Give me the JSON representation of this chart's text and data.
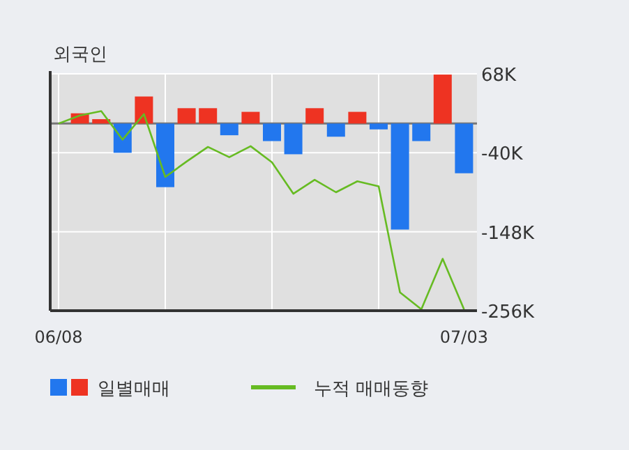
{
  "chart_data": {
    "type": "bar",
    "title": "외국인",
    "categories": [
      "06/08",
      null,
      null,
      null,
      null,
      null,
      null,
      null,
      null,
      null,
      null,
      null,
      null,
      null,
      null,
      null,
      null,
      null,
      null,
      "07/03"
    ],
    "series": [
      {
        "name": "일별매매",
        "colors": [
          null,
          "#ee3322",
          "#ee3322",
          "#2277ee",
          "#ee3322",
          "#2277ee",
          "#ee3322",
          "#ee3322",
          "#2277ee",
          "#ee3322",
          "#2277ee",
          "#2277ee",
          "#ee3322",
          "#2277ee",
          "#ee3322",
          "#2277ee",
          "#2277ee",
          "#2277ee",
          "#ee3322",
          "#2277ee"
        ],
        "values": [
          null,
          14000,
          6000,
          -40000,
          37000,
          -87000,
          21000,
          21000,
          -16000,
          16000,
          -24000,
          -42000,
          21000,
          -18000,
          16000,
          -8000,
          -145000,
          -24000,
          67000,
          -68000
        ]
      },
      {
        "name": "누적 매매동향",
        "type": "line",
        "color": "#66bb22",
        "values": [
          0,
          11000,
          17000,
          -22000,
          13000,
          -73000,
          -52000,
          -32000,
          -46000,
          -31000,
          -53000,
          -96000,
          -77000,
          -94000,
          -79000,
          -86000,
          -231000,
          -254000,
          -185000,
          -254000
        ]
      }
    ],
    "ylim": [
      -256000,
      68000
    ],
    "yticks": [
      {
        "value": 68000,
        "label": "68K"
      },
      {
        "value": -40000,
        "label": "-40K"
      },
      {
        "value": -148000,
        "label": "-148K"
      },
      {
        "value": -256000,
        "label": "-256K"
      }
    ],
    "grid": true,
    "legend": "bottom"
  }
}
